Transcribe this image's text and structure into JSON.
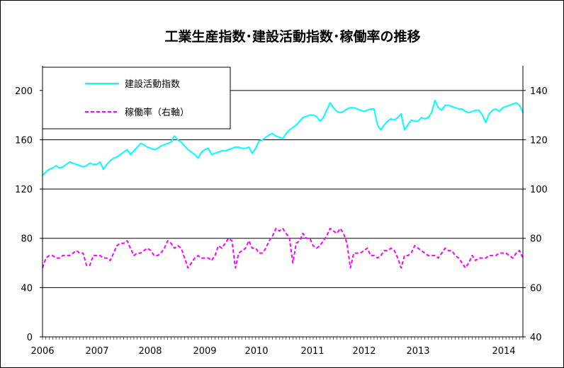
{
  "chart_data": {
    "type": "line",
    "title": "工業生産指数･建設活動指数･稼働率の推移",
    "x_tick_labels": [
      "2006",
      "2007",
      "2008",
      "2009",
      "2010",
      "2011",
      "2012",
      "2013",
      "2014"
    ],
    "left_axis": {
      "ylim": [
        0,
        220
      ],
      "ticks": [
        "0",
        "40",
        "80",
        "120",
        "160",
        "200"
      ]
    },
    "right_axis": {
      "ylim": [
        40,
        150
      ],
      "ticks": [
        "40",
        "60",
        "80",
        "100",
        "120",
        "140"
      ]
    },
    "gridlines": [
      0,
      40,
      80,
      120,
      160,
      200
    ],
    "legend": {
      "placement": "top-left",
      "entries": [
        "建設活動指数",
        "稼働率（右軸）"
      ]
    },
    "series": [
      {
        "name": "建設活動指数",
        "axis": "left",
        "color": "#00ffff",
        "style": "solid",
        "values": [
          131,
          134,
          136,
          137,
          139,
          137,
          138,
          140,
          142,
          141,
          140,
          139,
          138,
          139,
          141,
          140,
          140,
          142,
          136,
          140,
          143,
          145,
          146,
          148,
          150,
          152,
          148,
          151,
          154,
          157,
          156,
          154,
          153,
          152,
          153,
          155,
          156,
          157,
          158,
          163,
          160,
          158,
          155,
          152,
          150,
          148,
          145,
          150,
          152,
          153,
          148,
          149,
          150,
          151,
          151,
          152,
          153,
          154,
          154,
          153,
          153,
          154,
          149,
          153,
          159,
          160,
          162,
          164,
          165,
          163,
          162,
          161,
          165,
          168,
          170,
          172,
          175,
          178,
          179,
          180,
          180,
          179,
          175,
          178,
          184,
          190,
          186,
          183,
          182,
          183,
          185,
          186,
          186,
          185,
          184,
          183,
          184,
          185,
          185,
          172,
          168,
          172,
          175,
          177,
          176,
          178,
          181,
          168,
          172,
          176,
          175,
          175,
          178,
          177,
          178,
          182,
          192,
          186,
          184,
          188,
          188,
          187,
          186,
          185,
          185,
          183,
          182,
          183,
          184,
          184,
          180,
          174,
          181,
          184,
          185,
          183,
          186,
          187,
          188,
          189,
          190,
          188,
          182
        ]
      },
      {
        "name": "稼働率（右軸）",
        "axis": "right",
        "color": "#ff00ff",
        "style": "dashed",
        "values": [
          68,
          72,
          73,
          73,
          72,
          72,
          73,
          73,
          73,
          74,
          75,
          74,
          74,
          69,
          69,
          73,
          73,
          73,
          72,
          72,
          71,
          74,
          77,
          78,
          78,
          79,
          76,
          73,
          74,
          74,
          75,
          76,
          75,
          73,
          73,
          74,
          76,
          79,
          78,
          76,
          77,
          76,
          72,
          68,
          70,
          72,
          73,
          72,
          72,
          72,
          71,
          73,
          77,
          76,
          78,
          80,
          79,
          68,
          74,
          75,
          76,
          79,
          76,
          76,
          74,
          74,
          76,
          79,
          81,
          84,
          83,
          84,
          82,
          80,
          70,
          78,
          79,
          82,
          80,
          80,
          77,
          76,
          77,
          79,
          81,
          84,
          83,
          82,
          84,
          82,
          78,
          68,
          74,
          74,
          74,
          75,
          76,
          73,
          73,
          72,
          73,
          75,
          75,
          76,
          75,
          72,
          68,
          73,
          73,
          74,
          77,
          76,
          75,
          74,
          73,
          73,
          73,
          72,
          74,
          76,
          75,
          75,
          73,
          72,
          70,
          68,
          70,
          73,
          71,
          72,
          72,
          72,
          73,
          73,
          73,
          74,
          74,
          74,
          73,
          72,
          74,
          75,
          72
        ]
      }
    ]
  }
}
